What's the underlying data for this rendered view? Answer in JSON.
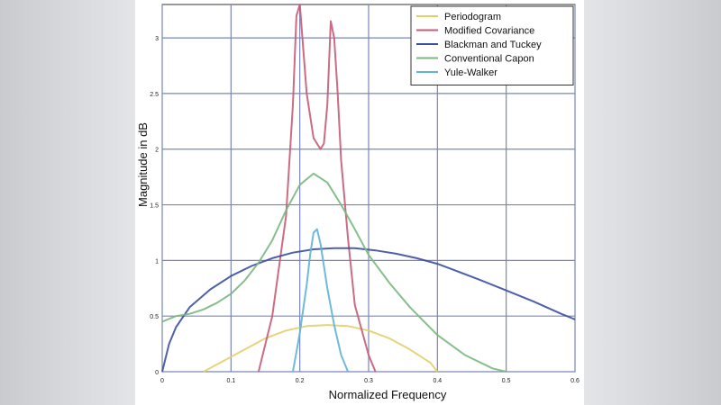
{
  "chart_data": {
    "type": "line",
    "xlabel": "Normalized Frequency",
    "ylabel": "Magnitude in dB",
    "xlim": [
      0,
      0.6
    ],
    "ylim": [
      0,
      3.3
    ],
    "xticks": [
      "0",
      "0.1",
      "0.2",
      "0.3",
      "0.4",
      "0.5",
      "0.6"
    ],
    "yticks": [
      "0",
      "0.5",
      "1",
      "1.5",
      "2",
      "2.5",
      "3"
    ],
    "grid": true,
    "legend_position": "top-right",
    "series": [
      {
        "name": "Periodogram",
        "color": "#e3cf6a",
        "x": [
          0.06,
          0.09,
          0.12,
          0.15,
          0.18,
          0.21,
          0.24,
          0.27,
          0.3,
          0.33,
          0.36,
          0.39,
          0.4
        ],
        "y": [
          0.0,
          0.1,
          0.2,
          0.3,
          0.37,
          0.41,
          0.42,
          0.41,
          0.37,
          0.3,
          0.2,
          0.08,
          0.0
        ]
      },
      {
        "name": "Modified Covariance",
        "color": "#c75b74",
        "x": [
          0.14,
          0.16,
          0.18,
          0.19,
          0.195,
          0.2,
          0.205,
          0.21,
          0.22,
          0.23,
          0.235,
          0.24,
          0.245,
          0.25,
          0.255,
          0.26,
          0.27,
          0.28,
          0.3,
          0.31
        ],
        "y": [
          0.0,
          0.5,
          1.4,
          2.4,
          3.2,
          3.3,
          2.9,
          2.5,
          2.1,
          2.0,
          2.05,
          2.4,
          3.15,
          3.0,
          2.5,
          1.9,
          1.2,
          0.6,
          0.15,
          0.0
        ]
      },
      {
        "name": "Blackman and Tuckey",
        "color": "#3b4fa0",
        "x": [
          0.0,
          0.01,
          0.02,
          0.04,
          0.07,
          0.1,
          0.13,
          0.16,
          0.19,
          0.22,
          0.25,
          0.28,
          0.31,
          0.34,
          0.37,
          0.4,
          0.43,
          0.46,
          0.5,
          0.54,
          0.58,
          0.6
        ],
        "y": [
          0.0,
          0.25,
          0.4,
          0.58,
          0.74,
          0.86,
          0.95,
          1.02,
          1.07,
          1.1,
          1.11,
          1.11,
          1.09,
          1.06,
          1.02,
          0.97,
          0.9,
          0.83,
          0.73,
          0.63,
          0.52,
          0.47
        ]
      },
      {
        "name": "Conventional Capon",
        "color": "#79b87e",
        "x": [
          0.0,
          0.02,
          0.04,
          0.06,
          0.08,
          0.1,
          0.12,
          0.14,
          0.16,
          0.18,
          0.2,
          0.22,
          0.24,
          0.26,
          0.28,
          0.3,
          0.33,
          0.36,
          0.4,
          0.44,
          0.48,
          0.5
        ],
        "y": [
          0.45,
          0.5,
          0.52,
          0.56,
          0.62,
          0.7,
          0.82,
          0.98,
          1.18,
          1.45,
          1.68,
          1.78,
          1.7,
          1.5,
          1.28,
          1.05,
          0.8,
          0.58,
          0.33,
          0.15,
          0.03,
          0.0
        ]
      },
      {
        "name": "Yule-Walker",
        "color": "#5fb3d6",
        "x": [
          0.19,
          0.2,
          0.21,
          0.215,
          0.22,
          0.225,
          0.23,
          0.24,
          0.25,
          0.26,
          0.27
        ],
        "y": [
          0.0,
          0.35,
          0.78,
          1.05,
          1.25,
          1.28,
          1.15,
          0.75,
          0.42,
          0.15,
          0.0
        ]
      }
    ]
  }
}
